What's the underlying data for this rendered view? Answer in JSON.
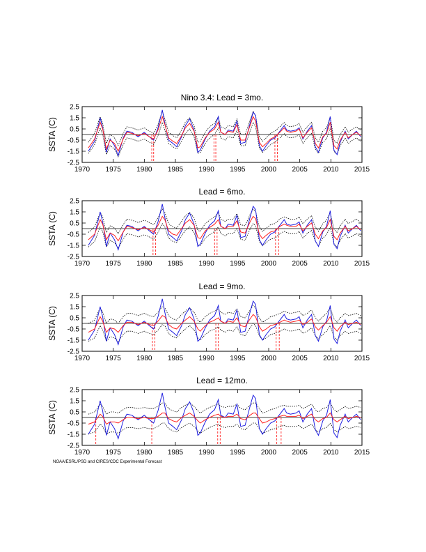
{
  "credit": "NOAA/ESRL/PSD and CIRES/CDC Experimental Forecast",
  "colors": {
    "observed": "#1f1fe0",
    "forecast": "#ff2020",
    "bounds": "#000000",
    "frame": "#000000"
  },
  "chart_data": [
    {
      "type": "line",
      "title": "Nino 3.4: Lead = 3mo.",
      "ylabel": "SSTA (C)",
      "xlim": [
        1970,
        2015
      ],
      "ylim": [
        -2.5,
        2.5
      ],
      "xticks": [
        "1970",
        "1975",
        "1980",
        "1985",
        "1990",
        "1995",
        "2000",
        "2005",
        "2010",
        "2015"
      ],
      "yticks": [
        "2.5",
        "1.5",
        "0.5",
        "-0.5",
        "-1.5",
        "-2.5"
      ],
      "x": [
        1971.0,
        1972.0,
        1972.9,
        1973.3,
        1973.9,
        1974.5,
        1975.2,
        1975.8,
        1976.6,
        1977.2,
        1978.0,
        1979.0,
        1980.0,
        1980.8,
        1981.5,
        1982.2,
        1982.9,
        1983.3,
        1983.9,
        1984.6,
        1985.2,
        1986.0,
        1986.6,
        1987.3,
        1988.0,
        1988.6,
        1989.0,
        1989.8,
        1990.5,
        1991.3,
        1991.9,
        1992.3,
        1993.0,
        1993.5,
        1994.3,
        1994.9,
        1995.5,
        1996.2,
        1997.0,
        1997.5,
        1997.9,
        1998.5,
        1999.0,
        1999.6,
        2000.3,
        2001.0,
        2001.8,
        2002.5,
        2002.9,
        2003.5,
        2004.4,
        2004.9,
        2005.5,
        2006.2,
        2006.9,
        2007.5,
        2008.0,
        2008.7,
        2009.3,
        2009.9,
        2010.5,
        2011.0,
        2011.5,
        2012.3,
        2012.8,
        2013.5,
        2014.1,
        2014.8
      ],
      "series": [
        {
          "name": "",
          "values": [
            -1.5,
            -0.6,
            1.5,
            0.6,
            -1.6,
            -0.4,
            -1.0,
            -1.9,
            -0.3,
            0.3,
            0.2,
            -0.2,
            0.2,
            -0.2,
            -0.5,
            0.6,
            2.2,
            1.0,
            -0.5,
            -0.8,
            -1.1,
            -0.2,
            0.8,
            1.4,
            0.4,
            -1.6,
            -1.4,
            -0.4,
            0.3,
            0.7,
            1.6,
            0.2,
            0.0,
            0.4,
            0.3,
            1.2,
            -0.8,
            -0.7,
            1.0,
            2.0,
            1.7,
            -1.0,
            -1.5,
            -1.0,
            -0.5,
            -0.3,
            0.3,
            0.8,
            0.4,
            0.3,
            0.4,
            0.6,
            -0.4,
            0.3,
            0.8,
            -1.1,
            -1.6,
            -0.3,
            0.2,
            1.6,
            -1.4,
            -1.8,
            -0.7,
            0.3,
            -0.4,
            0.0,
            0.3,
            -0.2
          ]
        },
        {
          "name": "",
          "values": [
            -1.2,
            -0.4,
            1.1,
            0.5,
            -1.3,
            -0.5,
            -0.8,
            -1.5,
            -0.4,
            0.2,
            0.1,
            -0.1,
            0.1,
            -0.2,
            -0.4,
            0.4,
            1.6,
            0.9,
            -0.3,
            -0.6,
            -0.8,
            -0.1,
            0.6,
            1.0,
            0.3,
            -1.2,
            -1.1,
            -0.3,
            0.2,
            0.5,
            1.1,
            0.2,
            0.0,
            0.3,
            0.2,
            0.9,
            -0.5,
            -0.5,
            0.8,
            1.6,
            1.2,
            -0.7,
            -1.1,
            -0.8,
            -0.4,
            -0.2,
            0.2,
            0.6,
            0.3,
            0.2,
            0.3,
            0.5,
            -0.3,
            0.2,
            0.6,
            -0.8,
            -1.2,
            -0.2,
            0.1,
            1.1,
            -1.0,
            -1.3,
            -0.5,
            0.2,
            -0.3,
            0.0,
            0.2,
            -0.1
          ]
        }
      ],
      "bound_offset": 0.5,
      "event_lines": [
        1981.2,
        1981.5,
        1991.2,
        1991.5,
        2001.0,
        2001.4
      ]
    },
    {
      "type": "line",
      "title": "Lead = 6mo.",
      "ylabel": "SSTA (C)",
      "xlim": [
        1970,
        2015
      ],
      "ylim": [
        -2.5,
        2.5
      ],
      "xticks": [
        "1970",
        "1975",
        "1980",
        "1985",
        "1990",
        "1995",
        "2000",
        "2005",
        "2010",
        "2015"
      ],
      "yticks": [
        "2.5",
        "1.5",
        "0.5",
        "-0.5",
        "-1.5",
        "-2.5"
      ],
      "x": [
        1971.0,
        1972.0,
        1972.9,
        1973.3,
        1973.9,
        1974.5,
        1975.2,
        1975.8,
        1976.6,
        1977.2,
        1978.0,
        1979.0,
        1980.0,
        1980.8,
        1981.5,
        1982.2,
        1982.9,
        1983.3,
        1983.9,
        1984.6,
        1985.2,
        1986.0,
        1986.6,
        1987.3,
        1988.0,
        1988.6,
        1989.0,
        1989.8,
        1990.5,
        1991.3,
        1991.9,
        1992.3,
        1993.0,
        1993.5,
        1994.3,
        1994.9,
        1995.5,
        1996.2,
        1997.0,
        1997.5,
        1997.9,
        1998.5,
        1999.0,
        1999.6,
        2000.3,
        2001.0,
        2001.8,
        2002.5,
        2002.9,
        2003.5,
        2004.4,
        2004.9,
        2005.5,
        2006.2,
        2006.9,
        2007.5,
        2008.0,
        2008.7,
        2009.3,
        2009.9,
        2010.5,
        2011.0,
        2011.5,
        2012.3,
        2012.8,
        2013.5,
        2014.1,
        2014.8
      ],
      "series": [
        {
          "name": "",
          "values": [
            -1.5,
            -0.6,
            1.5,
            0.6,
            -1.6,
            -0.4,
            -1.0,
            -1.9,
            -0.3,
            0.3,
            0.2,
            -0.2,
            0.2,
            -0.2,
            -0.5,
            0.6,
            2.2,
            1.0,
            -0.5,
            -0.8,
            -1.1,
            -0.2,
            0.8,
            1.4,
            0.4,
            -1.6,
            -1.4,
            -0.4,
            0.3,
            0.7,
            1.6,
            0.2,
            0.0,
            0.4,
            0.3,
            1.2,
            -0.8,
            -0.7,
            1.0,
            2.0,
            1.7,
            -1.0,
            -1.5,
            -1.0,
            -0.5,
            -0.3,
            0.3,
            0.8,
            0.4,
            0.3,
            0.4,
            0.6,
            -0.4,
            0.3,
            0.8,
            -1.1,
            -1.6,
            -0.3,
            0.2,
            1.6,
            -1.4,
            -1.8,
            -0.7,
            0.3,
            -0.4,
            0.0,
            0.3,
            -0.2
          ]
        },
        {
          "name": "",
          "values": [
            -1.0,
            -0.5,
            0.8,
            0.4,
            -1.0,
            -0.4,
            -0.6,
            -1.1,
            -0.3,
            0.2,
            0.1,
            -0.1,
            0.1,
            -0.1,
            -0.3,
            0.3,
            1.1,
            0.8,
            -0.2,
            -0.5,
            -0.6,
            0.0,
            0.5,
            0.8,
            0.3,
            -0.8,
            -0.9,
            -0.2,
            0.1,
            0.4,
            0.8,
            0.2,
            0.0,
            0.2,
            0.2,
            0.7,
            -0.3,
            -0.4,
            0.6,
            1.1,
            0.9,
            -0.5,
            -0.9,
            -0.6,
            -0.3,
            -0.2,
            0.2,
            0.4,
            0.3,
            0.2,
            0.2,
            0.4,
            -0.2,
            0.2,
            0.5,
            -0.5,
            -0.9,
            -0.2,
            0.1,
            0.8,
            -0.7,
            -1.0,
            -0.4,
            0.2,
            -0.2,
            0.0,
            0.2,
            -0.1
          ]
        }
      ],
      "bound_offset": 0.65,
      "event_lines": [
        1981.4,
        1981.8,
        1991.3,
        1991.7,
        2001.1,
        2001.6
      ]
    },
    {
      "type": "line",
      "title": "Lead = 9mo.",
      "ylabel": "SSTA (C)",
      "xlim": [
        1970,
        2015
      ],
      "ylim": [
        -2.5,
        2.5
      ],
      "xticks": [
        "1970",
        "1975",
        "1980",
        "1985",
        "1990",
        "1995",
        "2000",
        "2005",
        "2010",
        "2015"
      ],
      "yticks": [
        "2.5",
        "1.5",
        "0.5",
        "-0.5",
        "-1.5",
        "-2.5"
      ],
      "x": [
        1971.0,
        1972.0,
        1972.9,
        1973.3,
        1973.9,
        1974.5,
        1975.2,
        1975.8,
        1976.6,
        1977.2,
        1978.0,
        1979.0,
        1980.0,
        1980.8,
        1981.5,
        1982.2,
        1982.9,
        1983.3,
        1983.9,
        1984.6,
        1985.2,
        1986.0,
        1986.6,
        1987.3,
        1988.0,
        1988.6,
        1989.0,
        1989.8,
        1990.5,
        1991.3,
        1991.9,
        1992.3,
        1993.0,
        1993.5,
        1994.3,
        1994.9,
        1995.5,
        1996.2,
        1997.0,
        1997.5,
        1997.9,
        1998.5,
        1999.0,
        1999.6,
        2000.3,
        2001.0,
        2001.8,
        2002.5,
        2002.9,
        2003.5,
        2004.4,
        2004.9,
        2005.5,
        2006.2,
        2006.9,
        2007.5,
        2008.0,
        2008.7,
        2009.3,
        2009.9,
        2010.5,
        2011.0,
        2011.5,
        2012.3,
        2012.8,
        2013.5,
        2014.1,
        2014.8
      ],
      "series": [
        {
          "name": "",
          "values": [
            -1.5,
            -0.6,
            1.5,
            0.6,
            -1.6,
            -0.4,
            -1.0,
            -1.9,
            -0.3,
            0.3,
            0.2,
            -0.2,
            0.2,
            -0.2,
            -0.5,
            0.6,
            2.2,
            1.0,
            -0.5,
            -0.8,
            -1.1,
            -0.2,
            0.8,
            1.4,
            0.4,
            -1.6,
            -1.4,
            -0.4,
            0.3,
            0.7,
            1.6,
            0.2,
            0.0,
            0.4,
            0.3,
            1.2,
            -0.8,
            -0.7,
            1.0,
            2.0,
            1.7,
            -1.0,
            -1.5,
            -1.0,
            -0.5,
            -0.3,
            0.3,
            0.8,
            0.4,
            0.3,
            0.4,
            0.6,
            -0.4,
            0.3,
            0.8,
            -1.1,
            -1.6,
            -0.3,
            0.2,
            1.6,
            -1.4,
            -1.8,
            -0.7,
            0.3,
            -0.4,
            0.0,
            0.3,
            -0.2
          ]
        },
        {
          "name": "",
          "values": [
            -0.8,
            -0.5,
            0.6,
            0.2,
            -0.8,
            -0.4,
            -0.5,
            -0.8,
            -0.2,
            0.1,
            0.1,
            -0.1,
            0.1,
            -0.1,
            -0.2,
            0.2,
            0.7,
            0.6,
            -0.1,
            -0.4,
            -0.5,
            0.0,
            0.3,
            0.6,
            0.2,
            -0.5,
            -0.7,
            -0.2,
            0.1,
            0.3,
            0.5,
            0.2,
            0.0,
            0.2,
            0.1,
            0.5,
            -0.2,
            -0.3,
            0.4,
            0.8,
            0.6,
            -0.3,
            -0.7,
            -0.5,
            -0.2,
            -0.1,
            0.1,
            0.3,
            0.2,
            0.1,
            0.2,
            0.3,
            -0.1,
            0.1,
            0.4,
            -0.3,
            -0.6,
            -0.2,
            0.1,
            0.6,
            -0.4,
            -0.7,
            -0.3,
            0.1,
            -0.1,
            0.0,
            0.1,
            -0.1
          ]
        }
      ],
      "bound_offset": 0.8,
      "event_lines": [
        1981.3,
        1981.7,
        1991.5,
        1991.9,
        2001.2,
        2001.7
      ]
    },
    {
      "type": "line",
      "title": "Lead = 12mo.",
      "ylabel": "SSTA (C)",
      "xlim": [
        1970,
        2015
      ],
      "ylim": [
        -2.5,
        2.5
      ],
      "xticks": [
        "1970",
        "1975",
        "1980",
        "1985",
        "1990",
        "1995",
        "2000",
        "2005",
        "2010",
        "2015"
      ],
      "yticks": [
        "2.5",
        "1.5",
        "0.5",
        "-0.5",
        "-1.5",
        "-2.5"
      ],
      "x": [
        1971.0,
        1972.0,
        1972.9,
        1973.3,
        1973.9,
        1974.5,
        1975.2,
        1975.8,
        1976.6,
        1977.2,
        1978.0,
        1979.0,
        1980.0,
        1980.8,
        1981.5,
        1982.2,
        1982.9,
        1983.3,
        1983.9,
        1984.6,
        1985.2,
        1986.0,
        1986.6,
        1987.3,
        1988.0,
        1988.6,
        1989.0,
        1989.8,
        1990.5,
        1991.3,
        1991.9,
        1992.3,
        1993.0,
        1993.5,
        1994.3,
        1994.9,
        1995.5,
        1996.2,
        1997.0,
        1997.5,
        1997.9,
        1998.5,
        1999.0,
        1999.6,
        2000.3,
        2001.0,
        2001.8,
        2002.5,
        2002.9,
        2003.5,
        2004.4,
        2004.9,
        2005.5,
        2006.2,
        2006.9,
        2007.5,
        2008.0,
        2008.7,
        2009.3,
        2009.9,
        2010.5,
        2011.0,
        2011.5,
        2012.3,
        2012.8,
        2013.5,
        2014.1,
        2014.8
      ],
      "series": [
        {
          "name": "",
          "values": [
            -1.5,
            -0.6,
            1.5,
            0.6,
            -1.6,
            -0.4,
            -1.0,
            -1.9,
            -0.3,
            0.3,
            0.2,
            -0.2,
            0.2,
            -0.2,
            -0.5,
            0.6,
            2.2,
            1.0,
            -0.5,
            -0.8,
            -1.1,
            -0.2,
            0.8,
            1.4,
            0.4,
            -1.6,
            -1.4,
            -0.4,
            0.3,
            0.7,
            1.6,
            0.2,
            0.0,
            0.4,
            0.3,
            1.2,
            -0.8,
            -0.7,
            1.0,
            2.0,
            1.7,
            -1.0,
            -1.5,
            -1.0,
            -0.5,
            -0.3,
            0.3,
            0.8,
            0.4,
            0.3,
            0.4,
            0.6,
            -0.4,
            0.3,
            0.8,
            -1.1,
            -1.6,
            -0.3,
            0.2,
            1.6,
            -1.4,
            -1.8,
            -0.7,
            0.3,
            -0.4,
            0.0,
            0.3,
            -0.2
          ]
        },
        {
          "name": "",
          "values": [
            -0.6,
            -0.4,
            0.3,
            0.1,
            -0.6,
            -0.4,
            -0.4,
            -0.5,
            -0.2,
            0.0,
            0.0,
            -0.1,
            0.0,
            -0.1,
            -0.1,
            0.1,
            0.4,
            0.4,
            -0.1,
            -0.3,
            -0.4,
            0.0,
            0.2,
            0.4,
            0.1,
            -0.3,
            -0.5,
            -0.2,
            0.0,
            0.2,
            0.3,
            0.1,
            0.0,
            0.1,
            0.1,
            0.3,
            -0.1,
            -0.2,
            0.2,
            0.4,
            0.4,
            -0.1,
            -0.5,
            -0.4,
            -0.2,
            -0.1,
            0.1,
            0.2,
            0.1,
            0.1,
            0.1,
            0.2,
            -0.1,
            0.1,
            0.3,
            -0.2,
            -0.4,
            -0.1,
            0.0,
            0.4,
            -0.2,
            -0.4,
            -0.2,
            0.1,
            -0.1,
            0.0,
            0.1,
            0.0
          ]
        }
      ],
      "bound_offset": 0.9,
      "event_lines": [
        1972.2,
        1981.2,
        1991.8,
        1992.2,
        2001.3,
        2002.0
      ]
    }
  ]
}
